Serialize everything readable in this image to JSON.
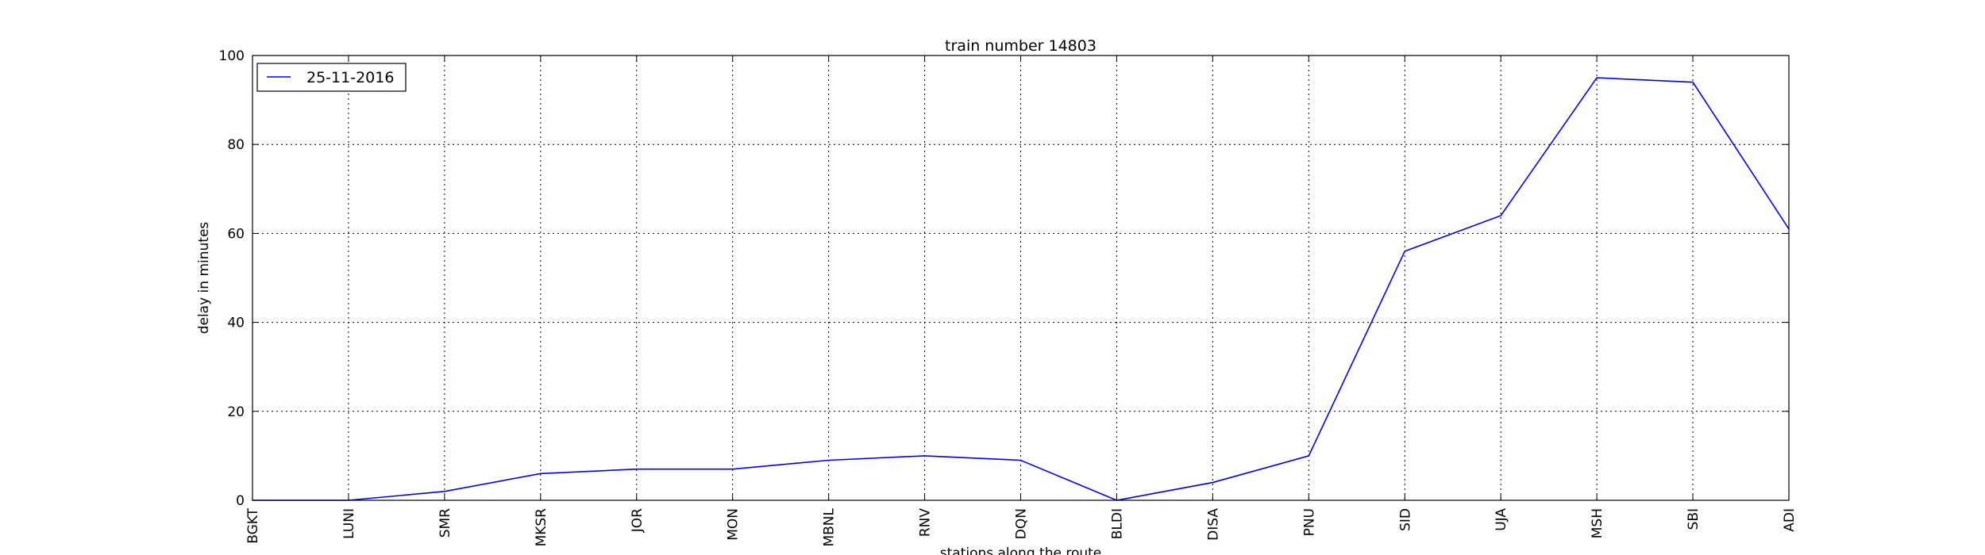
{
  "chart_data": {
    "type": "line",
    "title": "train number 14803",
    "xlabel": "stations along the route",
    "ylabel": "delay in minutes",
    "categories": [
      "BGKT",
      "LUNI",
      "SMR",
      "MKSR",
      "JOR",
      "MON",
      "MBNL",
      "RNV",
      "DQN",
      "BLDI",
      "DISA",
      "PNU",
      "SID",
      "UJA",
      "MSH",
      "SBI",
      "ADI"
    ],
    "series": [
      {
        "name": "25-11-2016",
        "color": "#0000ff",
        "values": [
          0,
          0,
          2,
          6,
          7,
          7,
          9,
          10,
          9,
          0,
          4,
          10,
          56,
          64,
          95,
          94,
          61
        ]
      }
    ],
    "ylim": [
      0,
      100
    ],
    "yticks": [
      0,
      20,
      40,
      60,
      80,
      100
    ],
    "grid": true,
    "legend_position": "top-left"
  }
}
